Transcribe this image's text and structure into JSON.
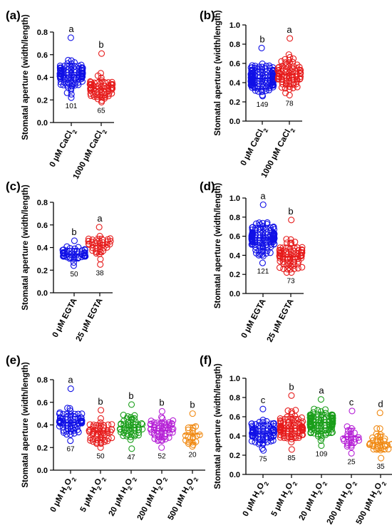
{
  "figure": {
    "colors": {
      "blue": "#1010e6",
      "red": "#e61b1b",
      "green": "#1a9e1a",
      "purple": "#b51fd6",
      "orange": "#f08a14"
    }
  },
  "chart_data": [
    {
      "panel": "(a)",
      "type": "scatter",
      "ylabel": "Stomatal aperture (width/length)",
      "ylim": [
        0,
        0.8
      ],
      "yticks": [
        "0.0",
        "0.2",
        "0.4",
        "0.6",
        "0.8"
      ],
      "groups": [
        {
          "label": "0 μM CaCl",
          "sub": "2",
          "color": "#1010e6",
          "n": "101",
          "letter": "a",
          "mean": 0.42,
          "sd": 0.1,
          "min": 0.22,
          "max": 0.75,
          "count": 101
        },
        {
          "label": "1000 μM CaCl",
          "sub": "2",
          "color": "#e61b1b",
          "n": "65",
          "letter": "b",
          "mean": 0.3,
          "sd": 0.08,
          "min": 0.18,
          "max": 0.61,
          "count": 65
        }
      ]
    },
    {
      "panel": "(b)",
      "type": "scatter",
      "ylabel": "Stomatal aperture (width/length)",
      "ylim": [
        0,
        1.0
      ],
      "yticks": [
        "0.0",
        "0.2",
        "0.4",
        "0.6",
        "0.8",
        "1.0"
      ],
      "groups": [
        {
          "label": "0 μM CaCl",
          "sub": "2",
          "color": "#1010e6",
          "n": "149",
          "letter": "b",
          "mean": 0.44,
          "sd": 0.1,
          "min": 0.26,
          "max": 0.76,
          "count": 149
        },
        {
          "label": "1000 μM CaCl",
          "sub": "2",
          "color": "#e61b1b",
          "n": "78",
          "letter": "a",
          "mean": 0.49,
          "sd": 0.13,
          "min": 0.27,
          "max": 0.86,
          "count": 78
        }
      ]
    },
    {
      "panel": "(c)",
      "type": "scatter",
      "ylabel": "Stomatal aperture (width/length)",
      "ylim": [
        0,
        0.8
      ],
      "yticks": [
        "0.0",
        "0.2",
        "0.4",
        "0.6",
        "0.8"
      ],
      "groups": [
        {
          "label": "0 μM EGTA",
          "sub": "",
          "color": "#1010e6",
          "n": "50",
          "letter": "b",
          "mean": 0.34,
          "sd": 0.05,
          "min": 0.24,
          "max": 0.46,
          "count": 50
        },
        {
          "label": "25 μM EGTA",
          "sub": "",
          "color": "#e61b1b",
          "n": "38",
          "letter": "a",
          "mean": 0.42,
          "sd": 0.08,
          "min": 0.25,
          "max": 0.58,
          "count": 38
        }
      ]
    },
    {
      "panel": "(d)",
      "type": "scatter",
      "ylabel": "Stomatal aperture (width/length)",
      "ylim": [
        0,
        1.0
      ],
      "yticks": [
        "0.0",
        "0.2",
        "0.4",
        "0.6",
        "0.8",
        "1.0"
      ],
      "groups": [
        {
          "label": "0 μM EGTA",
          "sub": "",
          "color": "#1010e6",
          "n": "121",
          "letter": "a",
          "mean": 0.58,
          "sd": 0.12,
          "min": 0.32,
          "max": 0.93,
          "count": 121
        },
        {
          "label": "25 μM EGTA",
          "sub": "",
          "color": "#e61b1b",
          "n": "73",
          "letter": "b",
          "mean": 0.39,
          "sd": 0.11,
          "min": 0.22,
          "max": 0.77,
          "count": 73
        }
      ]
    },
    {
      "panel": "(e)",
      "type": "scatter",
      "ylabel": "Stomatal aperture (width/length)",
      "ylim": [
        0,
        0.8
      ],
      "yticks": [
        "0.0",
        "0.2",
        "0.4",
        "0.6",
        "0.8"
      ],
      "groups": [
        {
          "label": "0 μM H",
          "sub": "2",
          "label2": "O",
          "sub2": "2",
          "color": "#1010e6",
          "n": "67",
          "letter": "a",
          "mean": 0.42,
          "sd": 0.08,
          "min": 0.26,
          "max": 0.72,
          "count": 67
        },
        {
          "label": "5 μM H",
          "sub": "2",
          "label2": "O",
          "sub2": "2",
          "color": "#e61b1b",
          "n": "50",
          "letter": "b",
          "mean": 0.34,
          "sd": 0.08,
          "min": 0.2,
          "max": 0.53,
          "count": 50
        },
        {
          "label": "20 μM H",
          "sub": "2",
          "label2": "O",
          "sub2": "2",
          "color": "#1a9e1a",
          "n": "47",
          "letter": "b",
          "mean": 0.38,
          "sd": 0.09,
          "min": 0.19,
          "max": 0.58,
          "count": 47
        },
        {
          "label": "200 μM H",
          "sub": "2",
          "label2": "O",
          "sub2": "2",
          "color": "#b51fd6",
          "n": "52",
          "letter": "b",
          "mean": 0.35,
          "sd": 0.08,
          "min": 0.2,
          "max": 0.52,
          "count": 52
        },
        {
          "label": "500 μM H",
          "sub": "2",
          "label2": "O",
          "sub2": "2",
          "color": "#f08a14",
          "n": "20",
          "letter": "b",
          "mean": 0.32,
          "sd": 0.08,
          "min": 0.21,
          "max": 0.5,
          "count": 20
        }
      ]
    },
    {
      "panel": "(f)",
      "type": "scatter",
      "ylabel": "Stomatal aperture (width/length)",
      "ylim": [
        0,
        1.0
      ],
      "yticks": [
        "0.0",
        "0.2",
        "0.4",
        "0.6",
        "0.8",
        "1.0"
      ],
      "groups": [
        {
          "label": "0 μM H",
          "sub": "2",
          "label2": "O",
          "sub2": "2",
          "color": "#1010e6",
          "n": "75",
          "letter": "c",
          "mean": 0.43,
          "sd": 0.1,
          "min": 0.25,
          "max": 0.68,
          "count": 75
        },
        {
          "label": "5 μM H",
          "sub": "2",
          "label2": "O",
          "sub2": "2",
          "color": "#e61b1b",
          "n": "85",
          "letter": "b",
          "mean": 0.48,
          "sd": 0.12,
          "min": 0.26,
          "max": 0.82,
          "count": 85
        },
        {
          "label": "20 μM H",
          "sub": "2",
          "label2": "O",
          "sub2": "2",
          "color": "#1a9e1a",
          "n": "109",
          "letter": "a",
          "mean": 0.54,
          "sd": 0.1,
          "min": 0.3,
          "max": 0.78,
          "count": 109
        },
        {
          "label": "200 μM H",
          "sub": "2",
          "label2": "O",
          "sub2": "2",
          "color": "#b51fd6",
          "n": "25",
          "letter": "c",
          "mean": 0.39,
          "sd": 0.09,
          "min": 0.22,
          "max": 0.66,
          "count": 25
        },
        {
          "label": "500 μM H",
          "sub": "2",
          "label2": "O",
          "sub2": "2",
          "color": "#f08a14",
          "n": "35",
          "letter": "d",
          "mean": 0.33,
          "sd": 0.09,
          "min": 0.17,
          "max": 0.64,
          "count": 35
        }
      ]
    }
  ]
}
